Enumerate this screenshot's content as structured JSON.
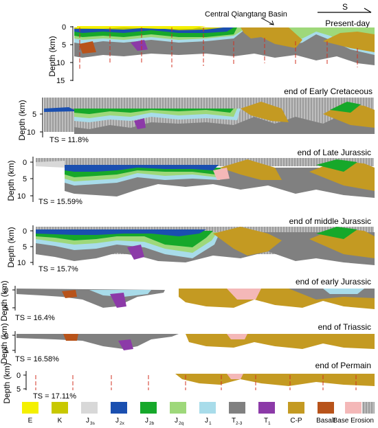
{
  "header": {
    "basin_label": "Central Qiangtang Basin",
    "direction": "S"
  },
  "y_axis_label": "Depth (km)",
  "colors": {
    "E": "#f4f000",
    "K": "#c8c800",
    "J3s": "#d8d8d8",
    "J2x": "#1a4fb0",
    "J2b": "#16a82a",
    "J2q": "#9ed87a",
    "J1": "#a8dcea",
    "T2-3": "#808080",
    "T1": "#8c3aa8",
    "C-P": "#c49a22",
    "Basalt": "#b8531a",
    "Base Erosion": "#f4b8b8",
    "seismic": "#a8a8a8",
    "fault": "#d03020"
  },
  "panels": [
    {
      "title": "Present-day",
      "ticks": [
        "0",
        "5",
        "10",
        "15"
      ],
      "ts": ""
    },
    {
      "title": "end of Early Cretaceous",
      "ticks": [
        "5",
        "10"
      ],
      "ts": "TS = 11.8%"
    },
    {
      "title": "end of Late Jurassic",
      "ticks": [
        "0",
        "5",
        "10"
      ],
      "ts": "TS = 15.59%"
    },
    {
      "title": "end of middle Jurassic",
      "ticks": [
        "0",
        "5",
        "10"
      ],
      "ts": "TS = 15.7%"
    },
    {
      "title": "end of early Jurassic",
      "ticks": [
        "0",
        "5"
      ],
      "ts": "TS = 16.4%"
    },
    {
      "title": "end of Triassic",
      "ticks": [
        "0",
        "5"
      ],
      "ts": "TS = 16.58%"
    },
    {
      "title": "end of Permain",
      "ticks": [
        "0",
        "5"
      ],
      "ts": "TS = 17.11%"
    }
  ],
  "legend": [
    {
      "key": "E",
      "label": "E",
      "sub": ""
    },
    {
      "key": "K",
      "label": "K",
      "sub": ""
    },
    {
      "key": "J3s",
      "label": "J",
      "sub": "3s"
    },
    {
      "key": "J2x",
      "label": "J",
      "sub": "2x"
    },
    {
      "key": "J2b",
      "label": "J",
      "sub": "2b"
    },
    {
      "key": "J2q",
      "label": "J",
      "sub": "2q"
    },
    {
      "key": "J1",
      "label": "J",
      "sub": "1"
    },
    {
      "key": "T2-3",
      "label": "T",
      "sub": "2-3"
    },
    {
      "key": "T1",
      "label": "T",
      "sub": "1"
    },
    {
      "key": "C-P",
      "label": "C-P",
      "sub": ""
    },
    {
      "key": "Basalt",
      "label": "Basalt",
      "sub": ""
    },
    {
      "key": "Base Erosion",
      "label": "Base Erosion",
      "sub": ""
    }
  ]
}
